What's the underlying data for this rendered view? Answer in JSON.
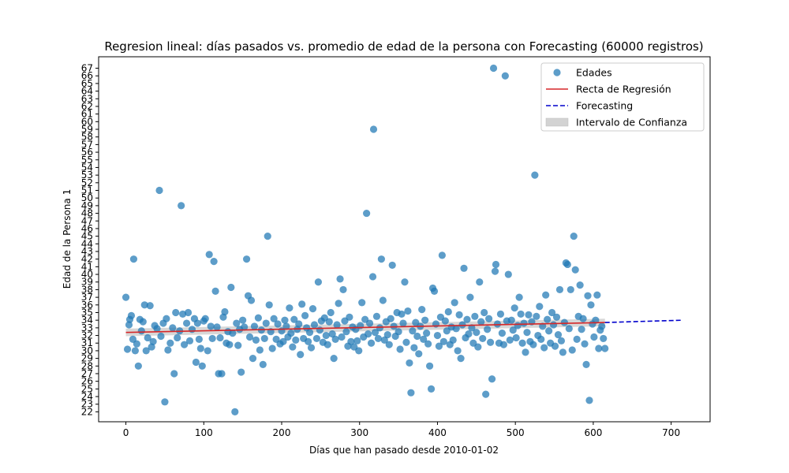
{
  "chart_data": {
    "type": "scatter",
    "title": "Regresion lineal: días pasados vs. promedio de edad de la persona con Forecasting (60000 registros)",
    "xlabel": "Días que han pasado desde 2010-01-02",
    "ylabel": "Edad de la Persona 1",
    "xlim": [
      -35,
      750
    ],
    "ylim": [
      20.7,
      68.5
    ],
    "x_ticks": [
      0,
      100,
      200,
      300,
      400,
      500,
      600,
      700
    ],
    "y_ticks": [
      22,
      23,
      24,
      25,
      26,
      27,
      28,
      29,
      30,
      31,
      32,
      33,
      34,
      35,
      36,
      37,
      38,
      39,
      40,
      41,
      42,
      43,
      44,
      45,
      46,
      47,
      48,
      49,
      50,
      51,
      52,
      53,
      54,
      55,
      56,
      57,
      58,
      59,
      60,
      61,
      62,
      63,
      64,
      65,
      66,
      67
    ],
    "legend": {
      "position": "top-right",
      "entries": [
        {
          "label": "Edades",
          "kind": "scatter",
          "color": "#1f77b4"
        },
        {
          "label": "Recta de Regresión",
          "kind": "line",
          "color": "#d62728"
        },
        {
          "label": "Forecasting",
          "kind": "dashed-line",
          "color": "#0000cc"
        },
        {
          "label": "Intervalo de Confianza",
          "kind": "band",
          "color": "#d3d3d3"
        }
      ]
    },
    "scatter_series": {
      "name": "Edades",
      "color": "#1f77b4",
      "points": [
        [
          0,
          37.0
        ],
        [
          2,
          30.2
        ],
        [
          4,
          33.4
        ],
        [
          5,
          34.1
        ],
        [
          7,
          34.6
        ],
        [
          9,
          31.5
        ],
        [
          10,
          42.0
        ],
        [
          12,
          30.0
        ],
        [
          14,
          30.9
        ],
        [
          16,
          28.0
        ],
        [
          18,
          34.1
        ],
        [
          20,
          32.6
        ],
        [
          22,
          33.8
        ],
        [
          24,
          36.0
        ],
        [
          26,
          30.0
        ],
        [
          28,
          31.7
        ],
        [
          31,
          35.9
        ],
        [
          33,
          30.5
        ],
        [
          35,
          31.2
        ],
        [
          37,
          33.3
        ],
        [
          40,
          32.9
        ],
        [
          43,
          51.0
        ],
        [
          45,
          31.9
        ],
        [
          48,
          33.6
        ],
        [
          50,
          23.3
        ],
        [
          52,
          34.2
        ],
        [
          54,
          30.1
        ],
        [
          57,
          31.0
        ],
        [
          60,
          33.0
        ],
        [
          62,
          27.0
        ],
        [
          64,
          35.0
        ],
        [
          66,
          31.7
        ],
        [
          69,
          32.6
        ],
        [
          71,
          49.0
        ],
        [
          73,
          34.8
        ],
        [
          75,
          30.8
        ],
        [
          78,
          33.6
        ],
        [
          80,
          35.0
        ],
        [
          82,
          31.3
        ],
        [
          85,
          32.8
        ],
        [
          88,
          34.2
        ],
        [
          90,
          28.5
        ],
        [
          92,
          33.6
        ],
        [
          94,
          31.5
        ],
        [
          96,
          30.3
        ],
        [
          98,
          28.0
        ],
        [
          100,
          33.9
        ],
        [
          102,
          34.2
        ],
        [
          105,
          30.0
        ],
        [
          107,
          42.6
        ],
        [
          109,
          33.2
        ],
        [
          111,
          31.6
        ],
        [
          113,
          41.7
        ],
        [
          115,
          37.8
        ],
        [
          117,
          33.1
        ],
        [
          119,
          27.0
        ],
        [
          121,
          31.7
        ],
        [
          123,
          27.0
        ],
        [
          125,
          34.4
        ],
        [
          127,
          35.1
        ],
        [
          129,
          31.0
        ],
        [
          131,
          32.5
        ],
        [
          133,
          30.8
        ],
        [
          135,
          38.3
        ],
        [
          137,
          32.3
        ],
        [
          140,
          22.0
        ],
        [
          142,
          33.6
        ],
        [
          144,
          30.7
        ],
        [
          146,
          32.8
        ],
        [
          148,
          27.2
        ],
        [
          150,
          34.0
        ],
        [
          152,
          33.1
        ],
        [
          155,
          42.0
        ],
        [
          157,
          37.2
        ],
        [
          159,
          31.8
        ],
        [
          161,
          36.6
        ],
        [
          163,
          29.0
        ],
        [
          165,
          33.2
        ],
        [
          167,
          31.4
        ],
        [
          170,
          34.3
        ],
        [
          172,
          30.1
        ],
        [
          174,
          32.7
        ],
        [
          176,
          28.2
        ],
        [
          178,
          31.6
        ],
        [
          180,
          33.6
        ],
        [
          182,
          45.0
        ],
        [
          184,
          36.0
        ],
        [
          186,
          32.5
        ],
        [
          188,
          30.3
        ],
        [
          190,
          34.2
        ],
        [
          193,
          31.5
        ],
        [
          195,
          33.5
        ],
        [
          198,
          30.9
        ],
        [
          200,
          32.6
        ],
        [
          202,
          31.2
        ],
        [
          204,
          34.0
        ],
        [
          206,
          33.2
        ],
        [
          208,
          31.8
        ],
        [
          210,
          35.6
        ],
        [
          212,
          32.3
        ],
        [
          214,
          30.5
        ],
        [
          216,
          34.1
        ],
        [
          218,
          31.4
        ],
        [
          220,
          32.8
        ],
        [
          222,
          33.5
        ],
        [
          224,
          29.5
        ],
        [
          226,
          36.1
        ],
        [
          228,
          31.6
        ],
        [
          230,
          34.6
        ],
        [
          232,
          33.0
        ],
        [
          234,
          31.2
        ],
        [
          236,
          32.4
        ],
        [
          238,
          30.4
        ],
        [
          240,
          35.5
        ],
        [
          242,
          33.4
        ],
        [
          245,
          31.6
        ],
        [
          247,
          39.0
        ],
        [
          249,
          32.7
        ],
        [
          251,
          33.9
        ],
        [
          253,
          31.1
        ],
        [
          255,
          34.3
        ],
        [
          257,
          32.0
        ],
        [
          259,
          30.8
        ],
        [
          261,
          33.8
        ],
        [
          263,
          35.0
        ],
        [
          265,
          32.2
        ],
        [
          267,
          29.0
        ],
        [
          269,
          31.5
        ],
        [
          271,
          33.4
        ],
        [
          273,
          36.2
        ],
        [
          275,
          39.4
        ],
        [
          277,
          31.8
        ],
        [
          279,
          38.0
        ],
        [
          281,
          33.9
        ],
        [
          283,
          32.5
        ],
        [
          285,
          30.6
        ],
        [
          287,
          34.4
        ],
        [
          289,
          31.2
        ],
        [
          291,
          33.1
        ],
        [
          293,
          30.5
        ],
        [
          295,
          32.8
        ],
        [
          297,
          31.3
        ],
        [
          299,
          30.0
        ],
        [
          301,
          33.3
        ],
        [
          303,
          36.3
        ],
        [
          305,
          31.8
        ],
        [
          307,
          34.1
        ],
        [
          309,
          48.0
        ],
        [
          311,
          32.2
        ],
        [
          313,
          33.6
        ],
        [
          315,
          31.0
        ],
        [
          317,
          39.7
        ],
        [
          318,
          59.0
        ],
        [
          320,
          32.4
        ],
        [
          322,
          34.5
        ],
        [
          324,
          31.6
        ],
        [
          326,
          33.0
        ],
        [
          328,
          42.0
        ],
        [
          330,
          36.6
        ],
        [
          332,
          31.4
        ],
        [
          334,
          33.8
        ],
        [
          336,
          32.1
        ],
        [
          338,
          30.8
        ],
        [
          340,
          34.2
        ],
        [
          342,
          41.2
        ],
        [
          344,
          33.2
        ],
        [
          346,
          31.9
        ],
        [
          348,
          35.0
        ],
        [
          350,
          32.5
        ],
        [
          352,
          30.2
        ],
        [
          354,
          34.8
        ],
        [
          356,
          33.6
        ],
        [
          358,
          39.0
        ],
        [
          360,
          31.1
        ],
        [
          362,
          35.2
        ],
        [
          364,
          28.4
        ],
        [
          366,
          24.5
        ],
        [
          368,
          32.6
        ],
        [
          370,
          30.4
        ],
        [
          372,
          33.7
        ],
        [
          374,
          31.9
        ],
        [
          376,
          29.6
        ],
        [
          378,
          33.2
        ],
        [
          380,
          35.4
        ],
        [
          382,
          31.5
        ],
        [
          384,
          34.0
        ],
        [
          386,
          32.3
        ],
        [
          388,
          30.9
        ],
        [
          390,
          28.0
        ],
        [
          392,
          25.0
        ],
        [
          394,
          38.2
        ],
        [
          396,
          37.8
        ],
        [
          398,
          33.5
        ],
        [
          400,
          32.0
        ],
        [
          402,
          30.6
        ],
        [
          404,
          34.4
        ],
        [
          406,
          42.5
        ],
        [
          408,
          31.2
        ],
        [
          410,
          33.9
        ],
        [
          412,
          32.6
        ],
        [
          414,
          35.1
        ],
        [
          416,
          30.8
        ],
        [
          418,
          33.1
        ],
        [
          420,
          31.4
        ],
        [
          422,
          36.3
        ],
        [
          424,
          32.9
        ],
        [
          426,
          30.0
        ],
        [
          428,
          34.7
        ],
        [
          430,
          29.0
        ],
        [
          432,
          33.4
        ],
        [
          434,
          40.8
        ],
        [
          436,
          31.7
        ],
        [
          438,
          34.1
        ],
        [
          440,
          32.2
        ],
        [
          442,
          37.0
        ],
        [
          444,
          33.0
        ],
        [
          446,
          31.0
        ],
        [
          448,
          34.5
        ],
        [
          450,
          32.4
        ],
        [
          452,
          30.5
        ],
        [
          454,
          39.0
        ],
        [
          456,
          33.8
        ],
        [
          458,
          31.6
        ],
        [
          460,
          35.0
        ],
        [
          462,
          24.3
        ],
        [
          464,
          32.8
        ],
        [
          466,
          34.2
        ],
        [
          468,
          31.1
        ],
        [
          470,
          26.3
        ],
        [
          472,
          67.0
        ],
        [
          474,
          40.4
        ],
        [
          475,
          41.3
        ],
        [
          477,
          33.5
        ],
        [
          479,
          31.0
        ],
        [
          481,
          34.8
        ],
        [
          483,
          32.3
        ],
        [
          485,
          30.8
        ],
        [
          487,
          66.0
        ],
        [
          489,
          33.9
        ],
        [
          491,
          40.0
        ],
        [
          493,
          31.4
        ],
        [
          495,
          34.0
        ],
        [
          497,
          32.7
        ],
        [
          499,
          35.6
        ],
        [
          501,
          31.7
        ],
        [
          503,
          33.3
        ],
        [
          505,
          37.0
        ],
        [
          507,
          34.8
        ],
        [
          509,
          31.0
        ],
        [
          511,
          33.6
        ],
        [
          513,
          29.8
        ],
        [
          515,
          32.4
        ],
        [
          517,
          34.7
        ],
        [
          519,
          31.2
        ],
        [
          521,
          33.8
        ],
        [
          523,
          30.8
        ],
        [
          525,
          53.0
        ],
        [
          527,
          34.5
        ],
        [
          529,
          32.0
        ],
        [
          531,
          35.8
        ],
        [
          533,
          31.5
        ],
        [
          535,
          33.2
        ],
        [
          537,
          30.4
        ],
        [
          539,
          37.3
        ],
        [
          541,
          34.1
        ],
        [
          543,
          32.6
        ],
        [
          545,
          31.0
        ],
        [
          547,
          35.0
        ],
        [
          549,
          33.4
        ],
        [
          551,
          30.6
        ],
        [
          553,
          34.4
        ],
        [
          555,
          32.1
        ],
        [
          557,
          38.0
        ],
        [
          559,
          31.3
        ],
        [
          561,
          29.8
        ],
        [
          563,
          33.7
        ],
        [
          565,
          41.5
        ],
        [
          567,
          41.3
        ],
        [
          569,
          32.9
        ],
        [
          571,
          38.0
        ],
        [
          573,
          30.1
        ],
        [
          575,
          45.0
        ],
        [
          577,
          40.6
        ],
        [
          579,
          31.5
        ],
        [
          581,
          34.5
        ],
        [
          583,
          38.6
        ],
        [
          585,
          32.8
        ],
        [
          587,
          34.2
        ],
        [
          589,
          30.9
        ],
        [
          591,
          28.2
        ],
        [
          593,
          37.2
        ],
        [
          595,
          23.5
        ],
        [
          597,
          36.0
        ],
        [
          599,
          33.5
        ],
        [
          601,
          31.8
        ],
        [
          603,
          34.0
        ],
        [
          605,
          37.3
        ],
        [
          607,
          30.3
        ],
        [
          609,
          32.7
        ],
        [
          611,
          33.2
        ],
        [
          613,
          31.6
        ],
        [
          615,
          30.3
        ]
      ]
    },
    "regression_line": {
      "name": "Recta de Regresión",
      "color": "#d62728",
      "x": [
        0,
        615
      ],
      "y": [
        32.4,
        33.7
      ]
    },
    "forecast_line": {
      "name": "Forecasting",
      "color": "#0000cc",
      "x": [
        615,
        715
      ],
      "y": [
        33.7,
        34.0
      ]
    },
    "confidence_band": {
      "name": "Intervalo de Confianza",
      "color": "#d3d3d3",
      "x": [
        0,
        615
      ],
      "lower": [
        31.9,
        33.2
      ],
      "upper": [
        32.9,
        34.2
      ]
    }
  }
}
